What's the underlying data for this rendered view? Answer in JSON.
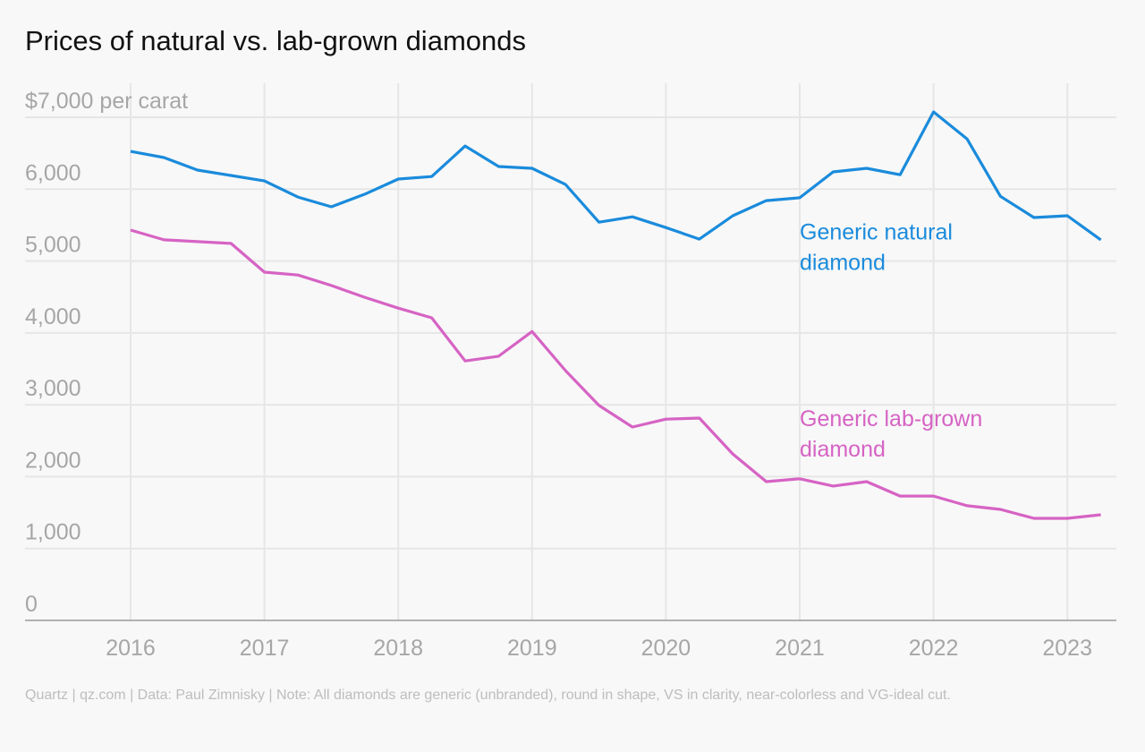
{
  "title": "Prices of natural vs. lab-grown diamonds",
  "footer": "Quartz | qz.com | Data: Paul Zimnisky | Note: All diamonds are generic (unbranded), round in shape, VS in clarity, near-colorless and VG-ideal cut.",
  "chart_data": {
    "type": "line",
    "title": "Prices of natural vs. lab-grown diamonds",
    "ylabel_top": "$7,000 per carat",
    "ylim": [
      0,
      7000
    ],
    "xlim": [
      2015.5,
      2023.4
    ],
    "grid": true,
    "y_ticks": [
      {
        "value": 0,
        "label": "0"
      },
      {
        "value": 1000,
        "label": "1,000"
      },
      {
        "value": 2000,
        "label": "2,000"
      },
      {
        "value": 3000,
        "label": "3,000"
      },
      {
        "value": 4000,
        "label": "4,000"
      },
      {
        "value": 5000,
        "label": "5,000"
      },
      {
        "value": 6000,
        "label": "6,000"
      },
      {
        "value": 7000,
        "label": "$7,000 per carat"
      }
    ],
    "x_ticks": [
      {
        "value": 2016,
        "label": "2016"
      },
      {
        "value": 2017,
        "label": "2017"
      },
      {
        "value": 2018,
        "label": "2018"
      },
      {
        "value": 2019,
        "label": "2019"
      },
      {
        "value": 2020,
        "label": "2020"
      },
      {
        "value": 2021,
        "label": "2021"
      },
      {
        "value": 2022,
        "label": "2022"
      },
      {
        "value": 2023,
        "label": "2023"
      }
    ],
    "x": [
      2016,
      2016.25,
      2016.5,
      2016.75,
      2017,
      2017.25,
      2017.5,
      2017.75,
      2018,
      2018.25,
      2018.5,
      2018.75,
      2019,
      2019.25,
      2019.5,
      2019.75,
      2020,
      2020.25,
      2020.5,
      2020.75,
      2021,
      2021.25,
      2021.5,
      2021.75,
      2022,
      2022.25,
      2022.5,
      2022.75,
      2023,
      2023.25
    ],
    "series": [
      {
        "name": "Generic natural diamond",
        "label_lines": [
          "Generic natural",
          "diamond"
        ],
        "color": "#1a8bdc",
        "label_at": [
          2021,
          5300
        ],
        "values": [
          6525,
          6440,
          6265,
          6190,
          6115,
          5890,
          5755,
          5930,
          6140,
          6175,
          6600,
          6315,
          6290,
          6065,
          5540,
          5615,
          5465,
          5305,
          5630,
          5840,
          5880,
          6240,
          6290,
          6200,
          7075,
          6700,
          5900,
          5605,
          5630,
          5295
        ]
      },
      {
        "name": "Generic lab-grown diamond",
        "label_lines": [
          "Generic lab-grown",
          "diamond"
        ],
        "color": "#d663c4",
        "label_at": [
          2021,
          2700
        ],
        "values": [
          5430,
          5295,
          5270,
          5245,
          4845,
          4805,
          4660,
          4495,
          4345,
          4210,
          3610,
          3675,
          4020,
          3475,
          2990,
          2690,
          2800,
          2815,
          2315,
          1930,
          1970,
          1870,
          1930,
          1730,
          1730,
          1595,
          1545,
          1420,
          1420,
          1470
        ]
      }
    ]
  }
}
